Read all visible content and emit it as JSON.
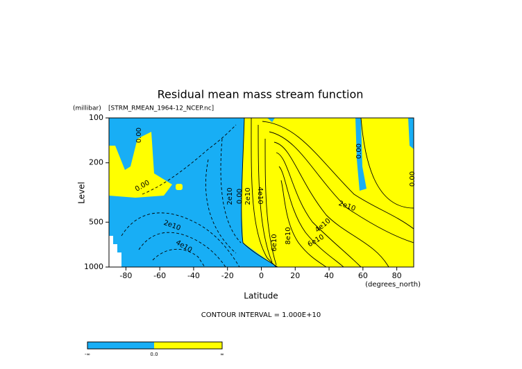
{
  "chart_data": {
    "type": "contour",
    "title": "Residual mean mass stream function",
    "subtitle": "[STRM_RMEAN_1964-12_NCEP.nc]",
    "y_unit": "(millibar)",
    "x_unit": "(degrees_north)",
    "xlabel": "Latitude",
    "ylabel": "Level",
    "xlim": [
      -90,
      90
    ],
    "xticks": [
      -80,
      -60,
      -40,
      -20,
      0,
      20,
      40,
      60,
      80
    ],
    "ylim": [
      1000,
      100
    ],
    "yticks": [
      100,
      200,
      500,
      1000
    ],
    "yscale": "log",
    "note": "CONTOUR INTERVAL = 1.000E+10",
    "contour_labels": [
      "0.00",
      "0.00",
      "0.00",
      "0.00",
      "0.00",
      "2e10",
      "2e10",
      "2e10",
      "2e10",
      "4e10",
      "4e10",
      "4e10",
      "6e10",
      "6e10",
      "8e10"
    ],
    "colorbar": {
      "labels": [
        "-∞",
        "0.0",
        "∞"
      ],
      "colors": [
        "#18aef5",
        "#ffff00"
      ]
    }
  }
}
